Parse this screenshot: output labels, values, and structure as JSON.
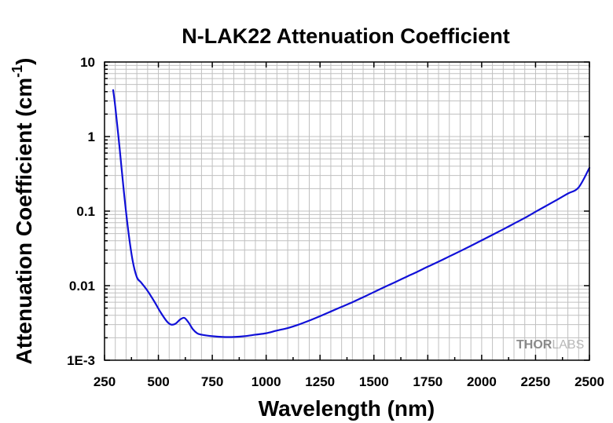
{
  "chart_data": {
    "type": "line",
    "title": "N-LAK22 Attenuation Coefficient",
    "xlabel": "Wavelength (nm)",
    "ylabel": "Attenuation Coefficient (cm",
    "ylabel_superscript": "-1",
    "ylabel_suffix": ")",
    "xlim": [
      250,
      2500
    ],
    "ylim": [
      0.001,
      10
    ],
    "y_scale": "log",
    "x_ticks": [
      "250",
      "500",
      "750",
      "1000",
      "1250",
      "1500",
      "1750",
      "2000",
      "2250",
      "2500"
    ],
    "y_ticks": [
      "1E-3",
      "0.01",
      "0.1",
      "1",
      "10"
    ],
    "grid": true,
    "watermark": "THORLABS",
    "series_color": "#1010d8",
    "series": [
      {
        "x": [
          290,
          300,
          320,
          340,
          360,
          380,
          400,
          420,
          450,
          480,
          510,
          540,
          560,
          580,
          600,
          620,
          640,
          660,
          680,
          700,
          750,
          800,
          850,
          900,
          950,
          1000,
          1050,
          1100,
          1150,
          1200,
          1250,
          1300,
          1350,
          1400,
          1450,
          1500,
          1550,
          1600,
          1650,
          1700,
          1750,
          1800,
          1850,
          1900,
          1950,
          2000,
          2050,
          2100,
          2150,
          2200,
          2250,
          2300,
          2350,
          2400,
          2450,
          2500
        ],
        "y": [
          4.2,
          2.5,
          0.7,
          0.18,
          0.055,
          0.022,
          0.013,
          0.011,
          0.0085,
          0.0062,
          0.0044,
          0.0033,
          0.003,
          0.0031,
          0.0035,
          0.0037,
          0.0032,
          0.0026,
          0.0023,
          0.0022,
          0.0021,
          0.00205,
          0.00205,
          0.0021,
          0.0022,
          0.0023,
          0.0025,
          0.0027,
          0.003,
          0.0034,
          0.0039,
          0.0045,
          0.0052,
          0.006,
          0.007,
          0.0082,
          0.0096,
          0.0112,
          0.0131,
          0.0153,
          0.018,
          0.021,
          0.0247,
          0.029,
          0.0342,
          0.0405,
          0.048,
          0.057,
          0.068,
          0.081,
          0.098,
          0.118,
          0.142,
          0.172,
          0.208,
          0.38
        ]
      }
    ]
  }
}
